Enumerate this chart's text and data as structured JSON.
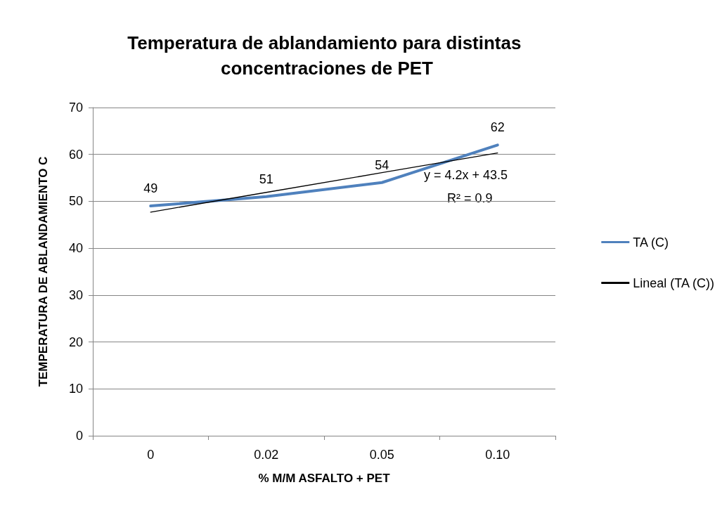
{
  "chart_data": {
    "type": "line",
    "title": "Temperatura de ablandamiento para distintas concentraciones de PET",
    "xlabel": "% M/M ASFALTO + PET",
    "ylabel": "TEMPERATURA DE ABLANDAMIENTO C",
    "categories": [
      "0",
      "0.02",
      "0.05",
      "0.10"
    ],
    "series": [
      {
        "name": "TA (C)",
        "color": "#4f81bd",
        "values": [
          49,
          51,
          54,
          62
        ],
        "data_labels": true
      },
      {
        "name": "Lineal (TA (C))",
        "color": "#000000",
        "values": [
          47.7,
          51.9,
          56.1,
          60.3
        ]
      }
    ],
    "ylim": [
      0,
      70
    ],
    "yticks": [
      0,
      10,
      20,
      30,
      40,
      50,
      60,
      70
    ],
    "grid": "y",
    "legend": "right",
    "marker": "none",
    "line_style": "solid",
    "annotations": [
      "y = 4.2x + 43.5",
      "R² = 0.9"
    ]
  }
}
